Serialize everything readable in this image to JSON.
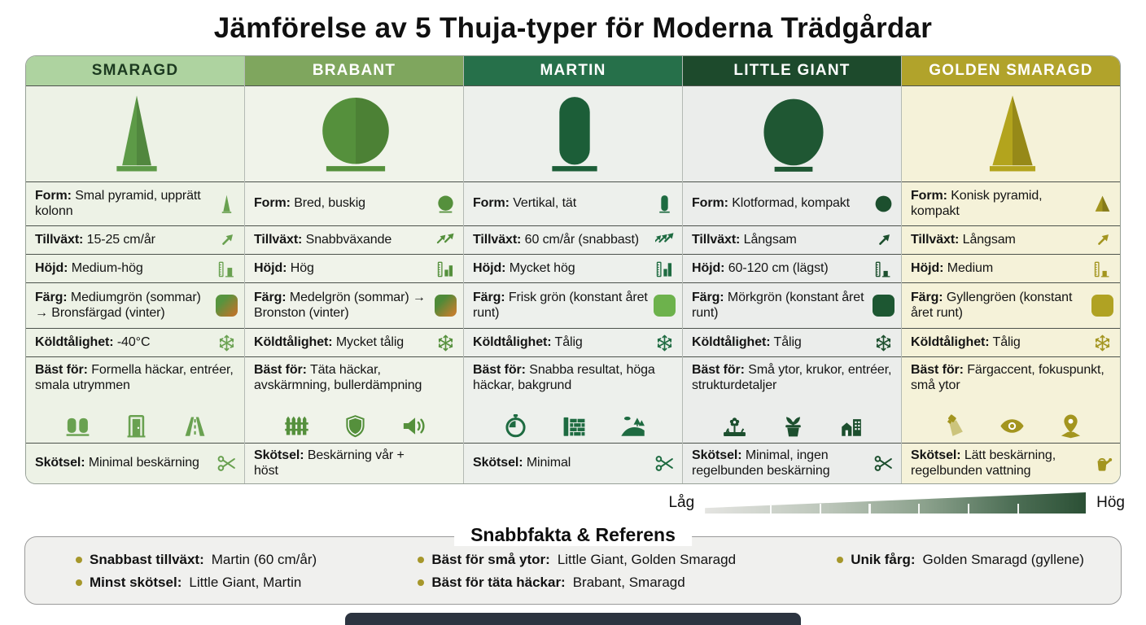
{
  "title": "Jämförelse av 5 Thuja-typer för Moderna Trädgårdar",
  "row_labels": {
    "form": "Form:",
    "growth": "Tillväxt:",
    "height": "Höjd:",
    "color": "Färg:",
    "cold": "Köldtålighet:",
    "best": "Bäst för:",
    "care": "Skötsel:"
  },
  "columns": [
    {
      "name": "SMARAGD",
      "colors": {
        "header_bg": "#aed3a0",
        "header_fg": "#1c3a20",
        "bg": "#edf2e6",
        "icon": "#69a150",
        "plant": "#5d9a47"
      },
      "plant_icon": "plant-narrow-cone",
      "form": "Smal pyramid, upprätt kolonn",
      "form_icon": "cone-narrow",
      "growth": "15-25 cm/år",
      "growth_icon": "arrow-1",
      "height": "Medium-hög",
      "height_icon": "ruler-mid",
      "color": "Mediumgrön (sommar) → Bronsfärgad (vinter)",
      "swatch": [
        "#57943f",
        "#b5762b"
      ],
      "cold": "-40°C",
      "cold_icon": "snowflake",
      "best": "Formella häckar, entréer, smala utrymmen",
      "best_icons": [
        "hedge",
        "door",
        "road"
      ],
      "care": "Minimal beskärning",
      "care_icon": "scissors"
    },
    {
      "name": "BRABANT",
      "colors": {
        "header_bg": "#7fa65e",
        "header_fg": "#ffffff",
        "bg": "#f0f3ea",
        "icon": "#55903c",
        "plant": "#55903c"
      },
      "plant_icon": "plant-bush",
      "form": "Bred, buskig",
      "form_icon": "bush",
      "growth": "Snabbväxande",
      "growth_icon": "arrow-2",
      "height": "Hög",
      "height_icon": "ruler-high",
      "color": "Medelgrön (sommar) → Bronston (vinter)",
      "swatch": [
        "#4f8a38",
        "#bd7f2e"
      ],
      "cold": "Mycket tålig",
      "cold_icon": "snowflake",
      "best": "Täta häckar, avskärmning, bullerdämpning",
      "best_icons": [
        "fence",
        "shield",
        "speaker"
      ],
      "care": "Beskärning vår + höst",
      "care_icon": ""
    },
    {
      "name": "MARTIN",
      "colors": {
        "header_bg": "#26704a",
        "header_fg": "#ffffff",
        "bg": "#edf0ec",
        "icon": "#1e6b41",
        "plant": "#1c5e38"
      },
      "plant_icon": "plant-column",
      "form": "Vertikal, tät",
      "form_icon": "capsule",
      "growth": "60 cm/år (snabbast)",
      "growth_icon": "arrow-3",
      "height": "Mycket hög",
      "height_icon": "ruler-vhigh",
      "color": "Frisk grön (konstant året runt)",
      "swatch": [
        "#6db24c"
      ],
      "cold": "Tålig",
      "cold_icon": "snowflake",
      "best": "Snabba resultat, höga häckar, bakgrund",
      "best_icons": [
        "stopwatch",
        "wall",
        "landscape"
      ],
      "care": "Minimal",
      "care_icon": "scissors"
    },
    {
      "name": "LITTLE GIANT",
      "colors": {
        "header_bg": "#1d4a2c",
        "header_fg": "#ffffff",
        "bg": "#ebedeb",
        "icon": "#1c4f2e",
        "plant": "#1f5733"
      },
      "plant_icon": "plant-sphere",
      "form": "Klotformad, kompakt",
      "form_icon": "sphere",
      "growth": "Långsam",
      "growth_icon": "arrow-1",
      "height": "60-120 cm (lägst)",
      "height_icon": "ruler-low",
      "color": "Mörkgrön (konstant året runt)",
      "swatch": [
        "#1d5732"
      ],
      "cold": "Tålig",
      "cold_icon": "snowflake",
      "best": "Små ytor, krukor, entréer, strukturdetaljer",
      "best_icons": [
        "flowerbed",
        "pot",
        "buildings"
      ],
      "care": "Minimal, ingen regelbunden beskärning",
      "care_icon": "scissors"
    },
    {
      "name": "GOLDEN SMARAGD",
      "colors": {
        "header_bg": "#b1a32b",
        "header_fg": "#ffffff",
        "bg": "#f5f2d9",
        "icon": "#a3951f",
        "plant": "#b3a41d"
      },
      "plant_icon": "plant-cone-gold",
      "form": "Konisk pyramid, kompakt",
      "form_icon": "pyramid",
      "growth": "Långsam",
      "growth_icon": "arrow-1",
      "height": "Medium",
      "height_icon": "ruler-low",
      "color": "Gyllengröen (konstant året runt)",
      "swatch": [
        "#b0a223"
      ],
      "cold": "Tålig",
      "cold_icon": "snowflake",
      "best": "Färgaccent, fokuspunkt, små ytor",
      "best_icons": [
        "spotlight",
        "eye",
        "pin"
      ],
      "care": "Lätt beskärning, regelbunden vattning",
      "care_icon": "watering-can"
    }
  ],
  "scale": {
    "low": "Låg",
    "high": "Hög"
  },
  "quickfacts": {
    "title": "Snabbfakta & Referens",
    "bullet_color": "#a6972b",
    "items": [
      {
        "label": "Snabbast tillväxt:",
        "value": "Martin (60 cm/år)"
      },
      {
        "label": "Minst skötsel:",
        "value": "Little Giant, Martin"
      },
      {
        "label": "Bäst för små ytor:",
        "value": "Little Giant, Golden Smaragd"
      },
      {
        "label": "Bäst för täta häckar:",
        "value": "Brabant, Smaragd"
      },
      {
        "label": "Unik fårg:",
        "value": "Golden Smaragd (gyllene)"
      }
    ]
  }
}
